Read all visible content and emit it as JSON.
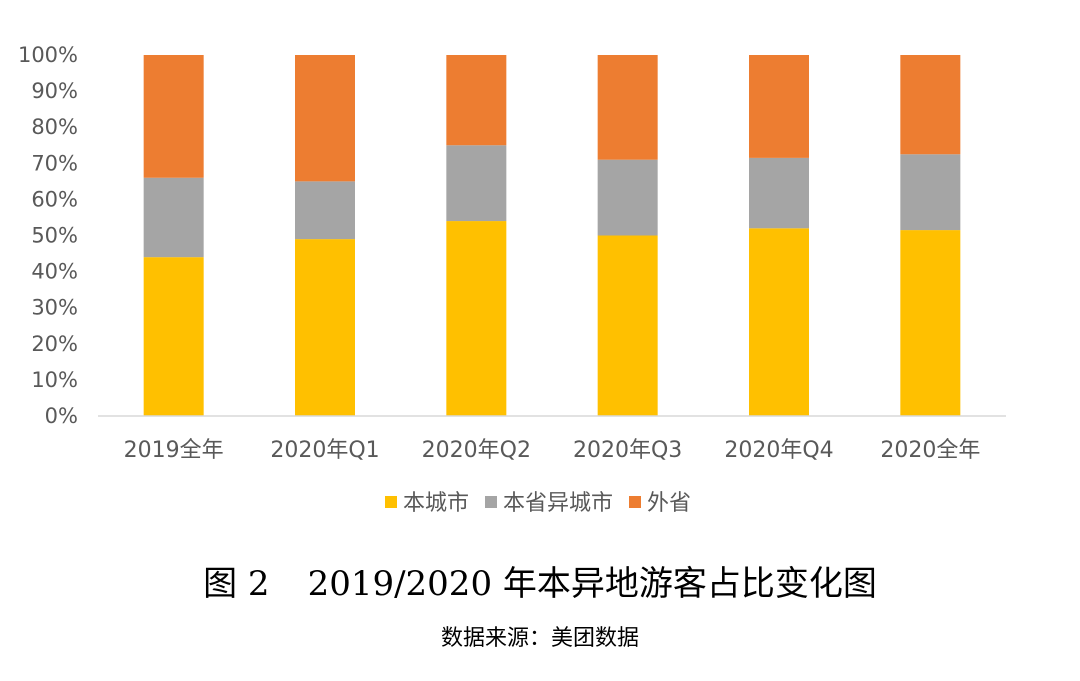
{
  "chart_data": {
    "type": "bar",
    "stacked": true,
    "categories": [
      "2019全年",
      "2020年Q1",
      "2020年Q2",
      "2020年Q3",
      "2020年Q4",
      "2020全年"
    ],
    "series": [
      {
        "name": "本城市",
        "color": "#FFC000",
        "values": [
          44,
          49,
          54,
          50,
          52,
          51.5
        ]
      },
      {
        "name": "本省异城市",
        "color": "#A5A5A5",
        "values": [
          22,
          16,
          21,
          21,
          19.5,
          21
        ]
      },
      {
        "name": "外省",
        "color": "#ED7D31",
        "values": [
          34,
          35,
          25,
          29,
          28.5,
          27.5
        ]
      }
    ],
    "ylim": [
      0,
      100
    ],
    "y_ticks": [
      "0%",
      "10%",
      "20%",
      "30%",
      "40%",
      "50%",
      "60%",
      "70%",
      "80%",
      "90%",
      "100%"
    ],
    "legend_position": "bottom",
    "grid": false
  },
  "caption": {
    "figure_number": "图 2",
    "title": "2019/2020 年本异地游客占比变化图",
    "source": "数据来源：美团数据"
  }
}
